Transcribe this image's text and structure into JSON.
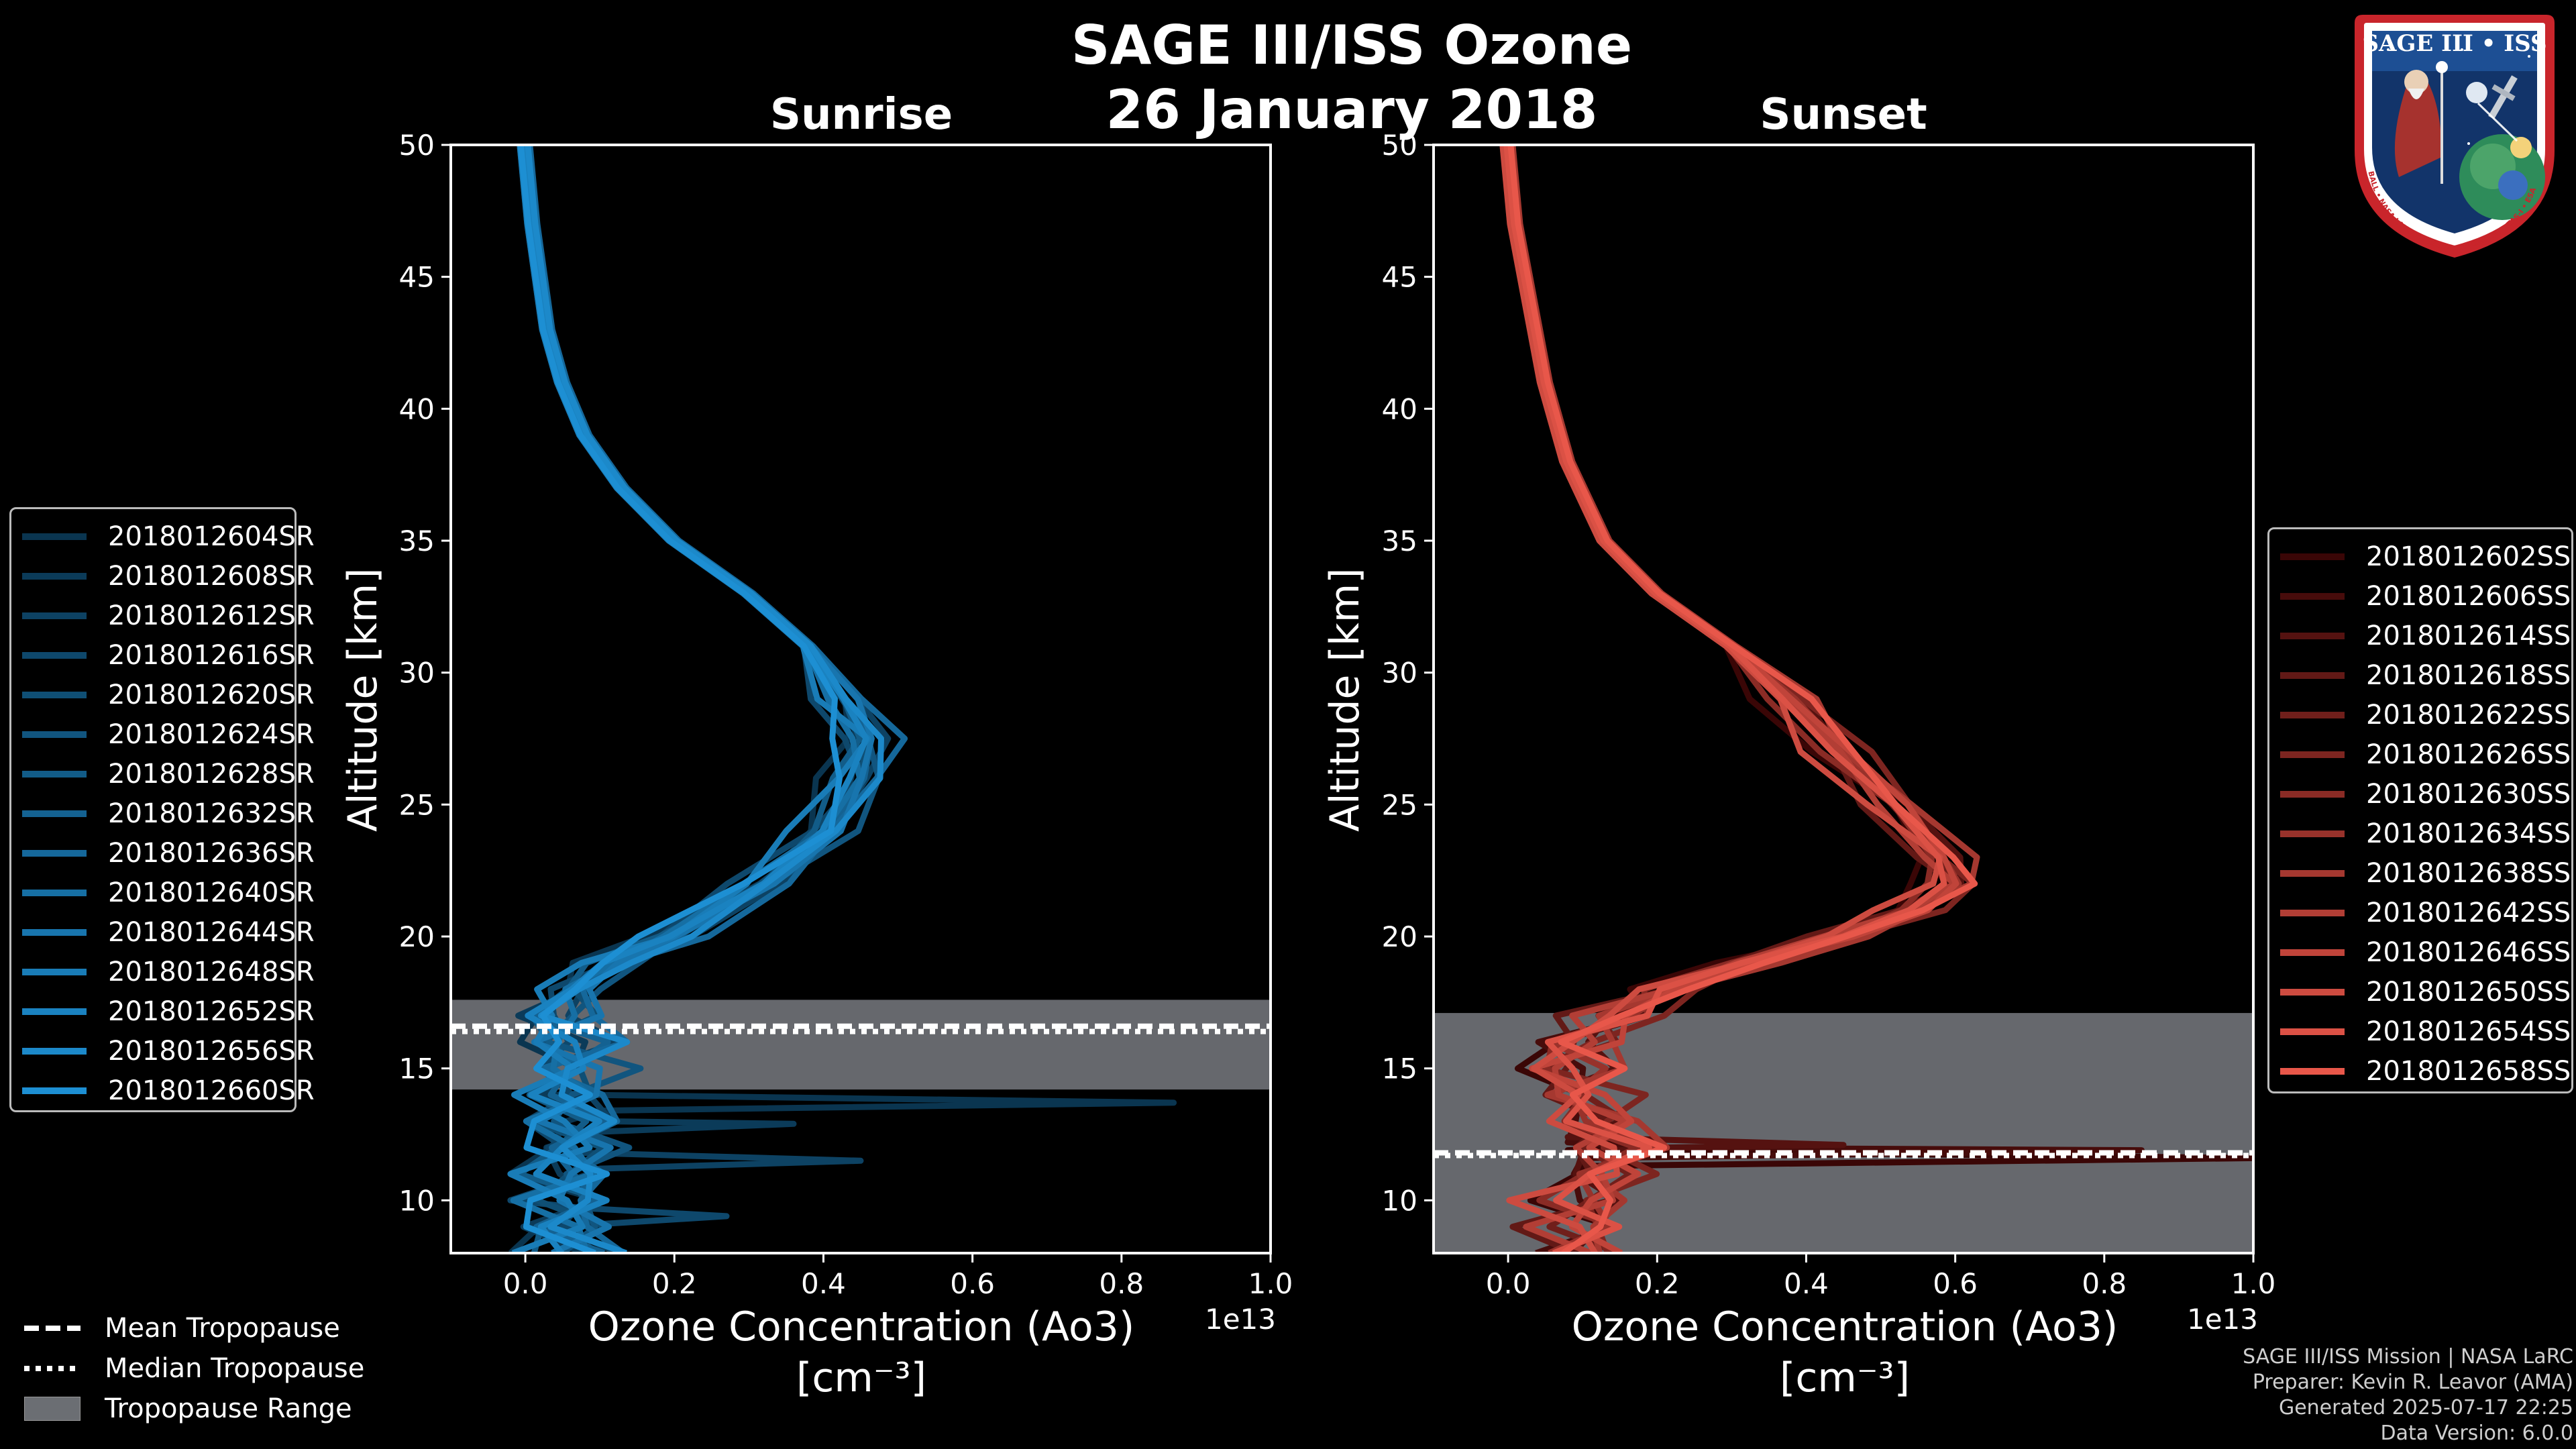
{
  "title_line1": "SAGE III/ISS Ozone",
  "title_line2": "26 January 2018",
  "logo": {
    "text": "SAGE III • ISS",
    "ring_text": "BALL • NASA LANGLEY RESEARCH CENTER • TAS-I • ESA"
  },
  "footer": {
    "line1": "SAGE III/ISS Mission | NASA LaRC",
    "line2": "Preparer: Kevin R. Leavor (AMA)",
    "line3": "Generated 2025-07-17 22:25",
    "line4": "Data Version: 6.0.0"
  },
  "tropopause_legend": {
    "mean": "Mean Tropopause",
    "median": "Median Tropopause",
    "range": "Tropopause Range"
  },
  "chart_data": [
    {
      "type": "line",
      "panel": "Sunrise",
      "title": "Sunrise",
      "xlabel": "Ozone Concentration (Ao3)",
      "xunits": "[cm⁻³]",
      "ylabel": "Altitude [km]",
      "x_scale_label": "1e13",
      "xlim": [
        -0.1,
        1.0
      ],
      "ylim": [
        8,
        50
      ],
      "xticks": [
        0.0,
        0.2,
        0.4,
        0.6,
        0.8,
        1.0
      ],
      "xtick_labels": [
        "0.0",
        "0.2",
        "0.4",
        "0.6",
        "0.8",
        "1.0"
      ],
      "yticks": [
        10,
        15,
        20,
        25,
        30,
        35,
        40,
        45,
        50
      ],
      "color_start": "#0a3550",
      "color_end": "#1d8fd3",
      "tropopause": {
        "min": 14.2,
        "max": 17.6,
        "mean": 16.6,
        "median": 16.4
      },
      "base_profile": [
        [
          0.0,
          50
        ],
        [
          0.01,
          47
        ],
        [
          0.02,
          45
        ],
        [
          0.03,
          43
        ],
        [
          0.05,
          41
        ],
        [
          0.08,
          39
        ],
        [
          0.13,
          37
        ],
        [
          0.2,
          35
        ],
        [
          0.3,
          33
        ],
        [
          0.38,
          31
        ],
        [
          0.43,
          29
        ],
        [
          0.46,
          27.5
        ],
        [
          0.45,
          26
        ],
        [
          0.41,
          24
        ],
        [
          0.32,
          22
        ],
        [
          0.2,
          20
        ],
        [
          0.12,
          19
        ],
        [
          0.07,
          18
        ],
        [
          0.05,
          17
        ],
        [
          0.06,
          16
        ],
        [
          0.07,
          15
        ],
        [
          0.06,
          14
        ],
        [
          0.06,
          13
        ],
        [
          0.07,
          12
        ],
        [
          0.06,
          11
        ],
        [
          0.06,
          10
        ],
        [
          0.06,
          9
        ],
        [
          0.07,
          8
        ]
      ],
      "spikes": [
        [
          13.7,
          0.87
        ],
        [
          12.9,
          0.36
        ],
        [
          11.5,
          0.45
        ],
        [
          9.4,
          0.27
        ]
      ],
      "series": [
        {
          "name": "2018012604SR"
        },
        {
          "name": "2018012608SR"
        },
        {
          "name": "2018012612SR"
        },
        {
          "name": "2018012616SR"
        },
        {
          "name": "2018012620SR"
        },
        {
          "name": "2018012624SR"
        },
        {
          "name": "2018012628SR"
        },
        {
          "name": "2018012632SR"
        },
        {
          "name": "2018012636SR"
        },
        {
          "name": "2018012640SR"
        },
        {
          "name": "2018012644SR"
        },
        {
          "name": "2018012648SR"
        },
        {
          "name": "2018012652SR"
        },
        {
          "name": "2018012656SR"
        },
        {
          "name": "2018012660SR"
        }
      ]
    },
    {
      "type": "line",
      "panel": "Sunset",
      "title": "Sunset",
      "xlabel": "Ozone Concentration (Ao3)",
      "xunits": "[cm⁻³]",
      "ylabel": "Altitude [km]",
      "x_scale_label": "1e13",
      "xlim": [
        -0.1,
        1.0
      ],
      "ylim": [
        8,
        50
      ],
      "xticks": [
        0.0,
        0.2,
        0.4,
        0.6,
        0.8,
        1.0
      ],
      "xtick_labels": [
        "0.0",
        "0.2",
        "0.4",
        "0.6",
        "0.8",
        "1.0"
      ],
      "yticks": [
        10,
        15,
        20,
        25,
        30,
        35,
        40,
        45,
        50
      ],
      "color_start": "#3a0606",
      "color_end": "#e8574a",
      "tropopause": {
        "min": 8.0,
        "max": 17.1,
        "mean": 11.8,
        "median": 11.7
      },
      "base_profile": [
        [
          0.0,
          50
        ],
        [
          0.01,
          47
        ],
        [
          0.03,
          44
        ],
        [
          0.05,
          41
        ],
        [
          0.08,
          38
        ],
        [
          0.13,
          35
        ],
        [
          0.2,
          33
        ],
        [
          0.3,
          31
        ],
        [
          0.38,
          29
        ],
        [
          0.45,
          27
        ],
        [
          0.52,
          25
        ],
        [
          0.58,
          23
        ],
        [
          0.6,
          22
        ],
        [
          0.55,
          21
        ],
        [
          0.45,
          20
        ],
        [
          0.32,
          19
        ],
        [
          0.22,
          18
        ],
        [
          0.15,
          17
        ],
        [
          0.1,
          16
        ],
        [
          0.08,
          15
        ],
        [
          0.1,
          14
        ],
        [
          0.13,
          13
        ],
        [
          0.15,
          12
        ],
        [
          0.13,
          11
        ],
        [
          0.11,
          10
        ],
        [
          0.1,
          9
        ],
        [
          0.1,
          8
        ]
      ],
      "spikes": [
        [
          11.6,
          1.0
        ],
        [
          11.9,
          0.85
        ],
        [
          12.1,
          0.45
        ]
      ],
      "series": [
        {
          "name": "2018012602SS"
        },
        {
          "name": "2018012606SS"
        },
        {
          "name": "2018012614SS"
        },
        {
          "name": "2018012618SS"
        },
        {
          "name": "2018012622SS"
        },
        {
          "name": "2018012626SS"
        },
        {
          "name": "2018012630SS"
        },
        {
          "name": "2018012634SS"
        },
        {
          "name": "2018012638SS"
        },
        {
          "name": "2018012642SS"
        },
        {
          "name": "2018012646SS"
        },
        {
          "name": "2018012650SS"
        },
        {
          "name": "2018012654SS"
        },
        {
          "name": "2018012658SS"
        }
      ]
    }
  ]
}
